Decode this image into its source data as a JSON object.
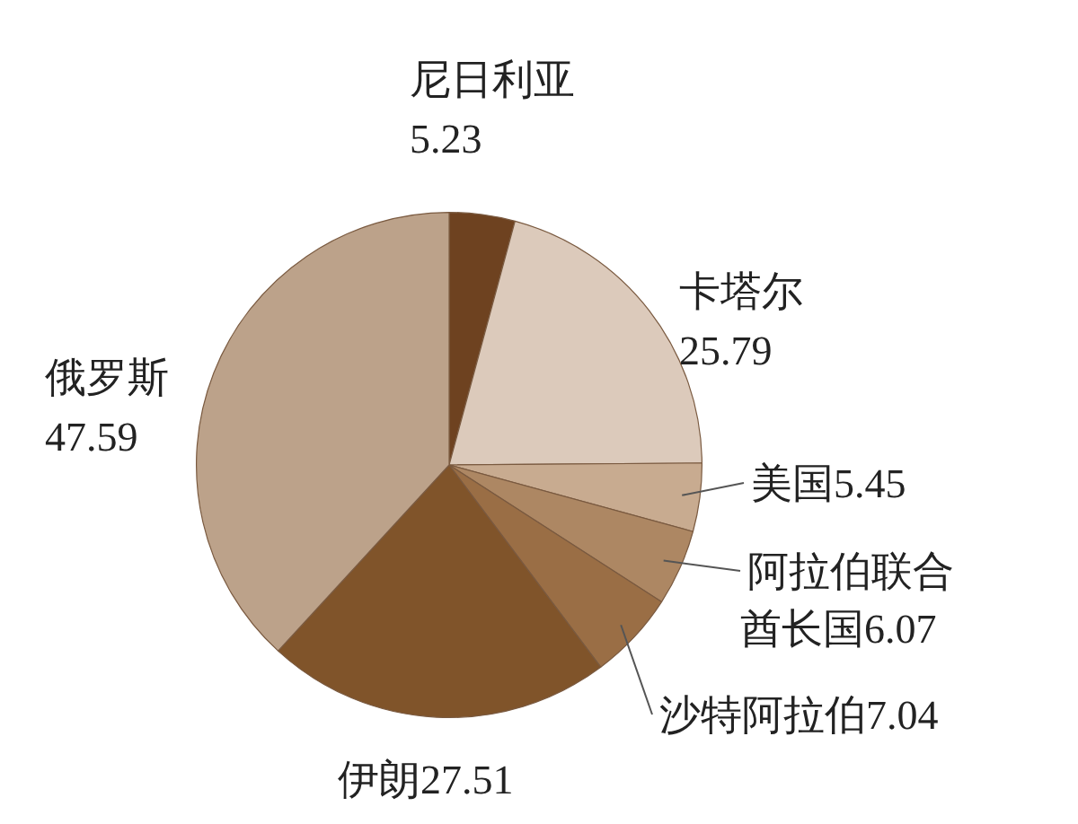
{
  "chart_data": {
    "type": "pie",
    "categories": [
      "尼日利亚",
      "卡塔尔",
      "美国",
      "阿拉伯联合酋长国",
      "沙特阿拉伯",
      "伊朗",
      "俄罗斯"
    ],
    "values": [
      5.23,
      25.79,
      5.45,
      6.07,
      7.04,
      27.51,
      47.59
    ],
    "colors": [
      "#6e4220",
      "#dccabb",
      "#c8ab90",
      "#ad8763",
      "#9a6e45",
      "#80542a",
      "#bca28a"
    ],
    "data_labels": true,
    "legend": false
  }
}
